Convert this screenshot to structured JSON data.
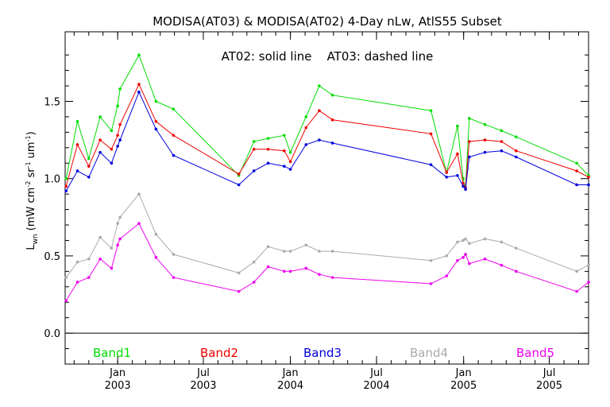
{
  "chart_data": {
    "type": "line",
    "title": "MODISA(AT03) & MODISA(AT02) 4-Day nLw, AtlS55 Subset",
    "annotation": "AT02: solid line    AT03: dashed line",
    "ylabel_main": "L",
    "ylabel_sub": "wn",
    "ylabel_units_parts": [
      "(mW cm",
      "-2",
      " sr",
      "-1",
      " um",
      "-1",
      ")"
    ],
    "xlabel": "",
    "ylim": [
      -0.2,
      1.95
    ],
    "y_ticks": [
      0.0,
      0.5,
      1.0,
      1.5
    ],
    "y_tick_labels": [
      "0.0",
      "0.5",
      "1.0",
      "1.5"
    ],
    "xlim": [
      "2002-09-12",
      "2005-09-22"
    ],
    "x_major_ticks": [
      {
        "date": "2003-01-01",
        "month": "Jan",
        "year": "2003"
      },
      {
        "date": "2003-07-01",
        "month": "Jul",
        "year": "2003"
      },
      {
        "date": "2004-01-01",
        "month": "Jan",
        "year": "2004"
      },
      {
        "date": "2004-07-01",
        "month": "Jul",
        "year": "2004"
      },
      {
        "date": "2005-01-01",
        "month": "Jan",
        "year": "2005"
      },
      {
        "date": "2005-07-01",
        "month": "Jul",
        "year": "2005"
      }
    ],
    "grid": false,
    "legend_position": "bottom",
    "series": [
      {
        "name": "Band1",
        "color": "#00dd00",
        "points": [
          {
            "x": "2002-09-14",
            "y": 1.0
          },
          {
            "x": "2002-10-08",
            "y": 1.37
          },
          {
            "x": "2002-11-01",
            "y": 1.13
          },
          {
            "x": "2002-11-25",
            "y": 1.4
          },
          {
            "x": "2002-12-19",
            "y": 1.31
          },
          {
            "x": "2003-01-01",
            "y": 1.47
          },
          {
            "x": "2003-01-06",
            "y": 1.58
          },
          {
            "x": "2003-02-15",
            "y": 1.8
          },
          {
            "x": "2003-03-23",
            "y": 1.5
          },
          {
            "x": "2003-04-29",
            "y": 1.45
          },
          {
            "x": "2003-09-14",
            "y": 1.02
          },
          {
            "x": "2003-10-16",
            "y": 1.24
          },
          {
            "x": "2003-11-15",
            "y": 1.26
          },
          {
            "x": "2003-12-19",
            "y": 1.28
          },
          {
            "x": "2004-01-01",
            "y": 1.17
          },
          {
            "x": "2004-02-03",
            "y": 1.4
          },
          {
            "x": "2004-03-02",
            "y": 1.6
          },
          {
            "x": "2004-03-30",
            "y": 1.54
          },
          {
            "x": "2004-10-24",
            "y": 1.44
          },
          {
            "x": "2004-11-26",
            "y": 1.04
          },
          {
            "x": "2004-12-19",
            "y": 1.34
          },
          {
            "x": "2004-12-31",
            "y": 1.0
          },
          {
            "x": "2005-01-05",
            "y": 0.94
          },
          {
            "x": "2005-01-13",
            "y": 1.39
          },
          {
            "x": "2005-02-15",
            "y": 1.35
          },
          {
            "x": "2005-03-22",
            "y": 1.31
          },
          {
            "x": "2005-04-22",
            "y": 1.27
          },
          {
            "x": "2005-08-28",
            "y": 1.1
          },
          {
            "x": "2005-09-22",
            "y": 1.02
          }
        ]
      },
      {
        "name": "Band2",
        "color": "#ee0000",
        "points": [
          {
            "x": "2002-09-14",
            "y": 0.95
          },
          {
            "x": "2002-10-08",
            "y": 1.22
          },
          {
            "x": "2002-11-01",
            "y": 1.08
          },
          {
            "x": "2002-11-25",
            "y": 1.25
          },
          {
            "x": "2002-12-19",
            "y": 1.19
          },
          {
            "x": "2003-01-01",
            "y": 1.28
          },
          {
            "x": "2003-01-06",
            "y": 1.35
          },
          {
            "x": "2003-02-15",
            "y": 1.61
          },
          {
            "x": "2003-03-23",
            "y": 1.37
          },
          {
            "x": "2003-04-29",
            "y": 1.28
          },
          {
            "x": "2003-09-14",
            "y": 1.03
          },
          {
            "x": "2003-10-16",
            "y": 1.19
          },
          {
            "x": "2003-11-15",
            "y": 1.19
          },
          {
            "x": "2003-12-19",
            "y": 1.18
          },
          {
            "x": "2004-01-01",
            "y": 1.11
          },
          {
            "x": "2004-02-03",
            "y": 1.33
          },
          {
            "x": "2004-03-02",
            "y": 1.44
          },
          {
            "x": "2004-03-30",
            "y": 1.38
          },
          {
            "x": "2004-10-24",
            "y": 1.29
          },
          {
            "x": "2004-11-26",
            "y": 1.04
          },
          {
            "x": "2004-12-19",
            "y": 1.16
          },
          {
            "x": "2004-12-31",
            "y": 0.97
          },
          {
            "x": "2005-01-05",
            "y": 0.94
          },
          {
            "x": "2005-01-13",
            "y": 1.24
          },
          {
            "x": "2005-02-15",
            "y": 1.25
          },
          {
            "x": "2005-03-22",
            "y": 1.24
          },
          {
            "x": "2005-04-22",
            "y": 1.18
          },
          {
            "x": "2005-08-28",
            "y": 1.05
          },
          {
            "x": "2005-09-22",
            "y": 1.01
          }
        ]
      },
      {
        "name": "Band3",
        "color": "#0000dd",
        "points": [
          {
            "x": "2002-09-14",
            "y": 0.92
          },
          {
            "x": "2002-10-08",
            "y": 1.05
          },
          {
            "x": "2002-11-01",
            "y": 1.01
          },
          {
            "x": "2002-11-25",
            "y": 1.17
          },
          {
            "x": "2002-12-19",
            "y": 1.1
          },
          {
            "x": "2003-01-01",
            "y": 1.21
          },
          {
            "x": "2003-01-06",
            "y": 1.25
          },
          {
            "x": "2003-02-15",
            "y": 1.56
          },
          {
            "x": "2003-03-23",
            "y": 1.32
          },
          {
            "x": "2003-04-29",
            "y": 1.15
          },
          {
            "x": "2003-09-14",
            "y": 0.96
          },
          {
            "x": "2003-10-16",
            "y": 1.05
          },
          {
            "x": "2003-11-15",
            "y": 1.1
          },
          {
            "x": "2003-12-19",
            "y": 1.08
          },
          {
            "x": "2004-01-01",
            "y": 1.06
          },
          {
            "x": "2004-02-03",
            "y": 1.22
          },
          {
            "x": "2004-03-02",
            "y": 1.25
          },
          {
            "x": "2004-03-30",
            "y": 1.23
          },
          {
            "x": "2004-10-24",
            "y": 1.09
          },
          {
            "x": "2004-11-26",
            "y": 1.01
          },
          {
            "x": "2004-12-19",
            "y": 1.02
          },
          {
            "x": "2004-12-31",
            "y": 0.95
          },
          {
            "x": "2005-01-05",
            "y": 0.93
          },
          {
            "x": "2005-01-13",
            "y": 1.14
          },
          {
            "x": "2005-02-15",
            "y": 1.17
          },
          {
            "x": "2005-03-22",
            "y": 1.18
          },
          {
            "x": "2005-04-22",
            "y": 1.14
          },
          {
            "x": "2005-08-28",
            "y": 0.96
          },
          {
            "x": "2005-09-22",
            "y": 0.96
          }
        ]
      },
      {
        "name": "Band4",
        "color": "#aaaaaa",
        "points": [
          {
            "x": "2002-09-14",
            "y": 0.36
          },
          {
            "x": "2002-10-08",
            "y": 0.46
          },
          {
            "x": "2002-11-01",
            "y": 0.48
          },
          {
            "x": "2002-11-25",
            "y": 0.62
          },
          {
            "x": "2002-12-19",
            "y": 0.55
          },
          {
            "x": "2003-01-01",
            "y": 0.71
          },
          {
            "x": "2003-01-06",
            "y": 0.75
          },
          {
            "x": "2003-02-15",
            "y": 0.9
          },
          {
            "x": "2003-03-23",
            "y": 0.64
          },
          {
            "x": "2003-04-29",
            "y": 0.51
          },
          {
            "x": "2003-09-14",
            "y": 0.39
          },
          {
            "x": "2003-10-16",
            "y": 0.46
          },
          {
            "x": "2003-11-15",
            "y": 0.56
          },
          {
            "x": "2003-12-19",
            "y": 0.53
          },
          {
            "x": "2004-01-01",
            "y": 0.53
          },
          {
            "x": "2004-02-03",
            "y": 0.57
          },
          {
            "x": "2004-03-02",
            "y": 0.53
          },
          {
            "x": "2004-03-30",
            "y": 0.53
          },
          {
            "x": "2004-10-24",
            "y": 0.47
          },
          {
            "x": "2004-11-26",
            "y": 0.5
          },
          {
            "x": "2004-12-19",
            "y": 0.59
          },
          {
            "x": "2004-12-31",
            "y": 0.6
          },
          {
            "x": "2005-01-05",
            "y": 0.61
          },
          {
            "x": "2005-01-13",
            "y": 0.58
          },
          {
            "x": "2005-02-15",
            "y": 0.61
          },
          {
            "x": "2005-03-22",
            "y": 0.59
          },
          {
            "x": "2005-04-22",
            "y": 0.55
          },
          {
            "x": "2005-08-28",
            "y": 0.4
          },
          {
            "x": "2005-09-22",
            "y": 0.44
          }
        ]
      },
      {
        "name": "Band5",
        "color": "#ee00ee",
        "points": [
          {
            "x": "2002-09-14",
            "y": 0.21
          },
          {
            "x": "2002-10-08",
            "y": 0.33
          },
          {
            "x": "2002-11-01",
            "y": 0.36
          },
          {
            "x": "2002-11-25",
            "y": 0.48
          },
          {
            "x": "2002-12-19",
            "y": 0.42
          },
          {
            "x": "2003-01-01",
            "y": 0.57
          },
          {
            "x": "2003-01-06",
            "y": 0.61
          },
          {
            "x": "2003-02-15",
            "y": 0.71
          },
          {
            "x": "2003-03-23",
            "y": 0.49
          },
          {
            "x": "2003-04-29",
            "y": 0.36
          },
          {
            "x": "2003-09-14",
            "y": 0.27
          },
          {
            "x": "2003-10-16",
            "y": 0.33
          },
          {
            "x": "2003-11-15",
            "y": 0.43
          },
          {
            "x": "2003-12-19",
            "y": 0.4
          },
          {
            "x": "2004-01-01",
            "y": 0.4
          },
          {
            "x": "2004-02-03",
            "y": 0.42
          },
          {
            "x": "2004-03-02",
            "y": 0.38
          },
          {
            "x": "2004-03-30",
            "y": 0.36
          },
          {
            "x": "2004-10-24",
            "y": 0.32
          },
          {
            "x": "2004-11-26",
            "y": 0.37
          },
          {
            "x": "2004-12-19",
            "y": 0.47
          },
          {
            "x": "2004-12-31",
            "y": 0.49
          },
          {
            "x": "2005-01-05",
            "y": 0.51
          },
          {
            "x": "2005-01-13",
            "y": 0.45
          },
          {
            "x": "2005-02-15",
            "y": 0.48
          },
          {
            "x": "2005-03-22",
            "y": 0.44
          },
          {
            "x": "2005-04-22",
            "y": 0.4
          },
          {
            "x": "2005-08-28",
            "y": 0.27
          },
          {
            "x": "2005-09-22",
            "y": 0.33
          }
        ]
      }
    ]
  }
}
